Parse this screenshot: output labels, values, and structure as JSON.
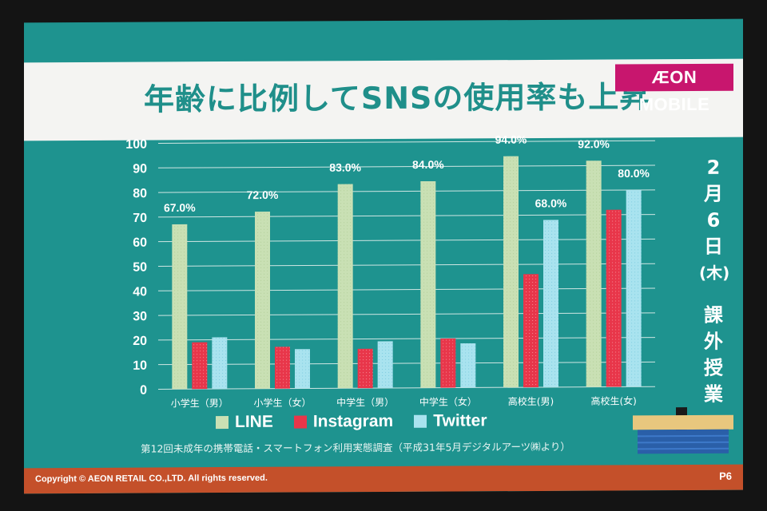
{
  "title": "年齢に比例してSNSの使用率も上昇",
  "logo_text": "ÆON MOBILE",
  "source_note": "第12回未成年の携帯電話・スマートフォン利用実態調査（平成31年5月デジタルアーツ㈱より）",
  "date_label": [
    "2",
    "月",
    "6",
    "日",
    "(木)"
  ],
  "class_label": [
    "課",
    "外",
    "授",
    "業"
  ],
  "copyright": "Copyright © AEON RETAIL CO.,LTD. All rights reserved.",
  "page_number": "P6",
  "colors": {
    "line": "#c9e0b4",
    "instagram": "#e8364a",
    "twitter": "#a9e3ef",
    "slide_bg": "#1e938f",
    "footer": "#c4502a",
    "logo_bg": "#c8166e"
  },
  "chart_data": {
    "type": "bar",
    "categories": [
      "小学生（男）",
      "小学生（女）",
      "中学生（男）",
      "中学生（女）",
      "高校生(男)",
      "高校生(女)"
    ],
    "series": [
      {
        "name": "LINE",
        "values": [
          67,
          72,
          83,
          84,
          94,
          92
        ]
      },
      {
        "name": "Instagram",
        "values": [
          19,
          17,
          16,
          20,
          46,
          72
        ]
      },
      {
        "name": "Twitter",
        "values": [
          21,
          16,
          19,
          18,
          68,
          80
        ]
      }
    ],
    "data_labels": [
      {
        "category_index": 0,
        "series": "LINE",
        "text": "67.0%"
      },
      {
        "category_index": 1,
        "series": "LINE",
        "text": "72.0%"
      },
      {
        "category_index": 2,
        "series": "LINE",
        "text": "83.0%"
      },
      {
        "category_index": 3,
        "series": "LINE",
        "text": "84.0%"
      },
      {
        "category_index": 4,
        "series": "LINE",
        "text": "94.0%"
      },
      {
        "category_index": 4,
        "series": "Twitter",
        "text": "68.0%"
      },
      {
        "category_index": 5,
        "series": "LINE",
        "text": "92.0%"
      },
      {
        "category_index": 5,
        "series": "Twitter",
        "text": "80.0%"
      }
    ],
    "yticks": [
      "0",
      "10",
      "20",
      "30",
      "40",
      "50",
      "60",
      "70",
      "80",
      "90",
      "100"
    ],
    "ylim": [
      0,
      100
    ],
    "grid": true,
    "legend_position": "bottom"
  }
}
